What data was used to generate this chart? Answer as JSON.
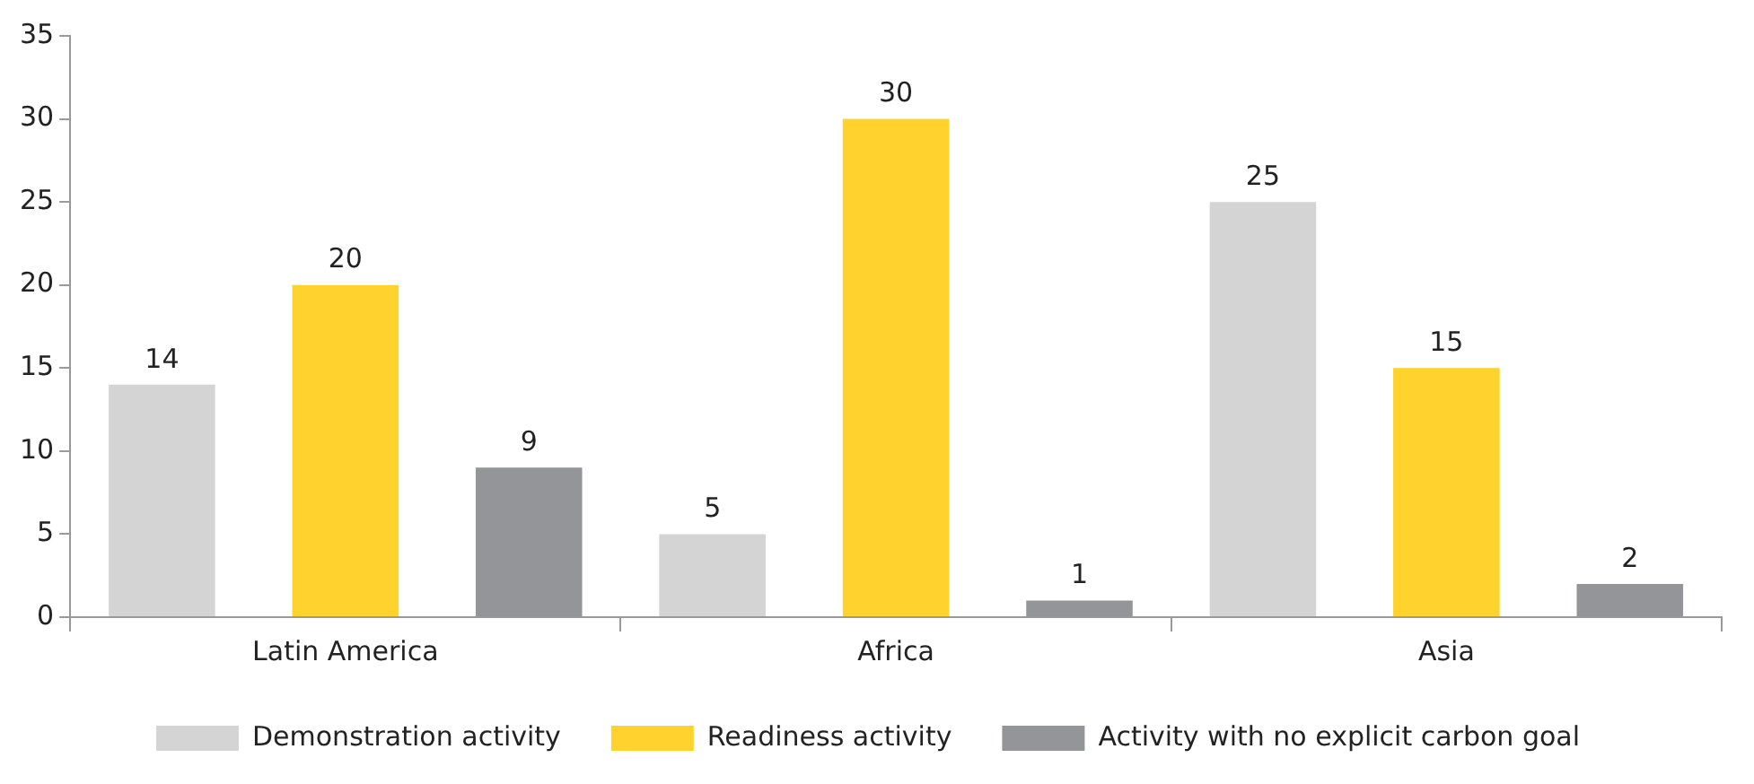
{
  "chart_data": {
    "type": "bar",
    "categories": [
      "Latin America",
      "Africa",
      "Asia"
    ],
    "series": [
      {
        "name": "Demonstration activity",
        "color": "#d4d4d4",
        "values": [
          14,
          5,
          25
        ]
      },
      {
        "name": "Readiness activity",
        "color": "#ffd22e",
        "values": [
          20,
          30,
          15
        ]
      },
      {
        "name": "Activity with no explicit carbon goal",
        "color": "#939598",
        "values": [
          9,
          1,
          2
        ]
      }
    ],
    "ylim": [
      0,
      35
    ],
    "yticks": [
      0,
      5,
      10,
      15,
      20,
      25,
      30,
      35
    ],
    "grid": false,
    "legend": "bottom",
    "data_labels": true
  }
}
